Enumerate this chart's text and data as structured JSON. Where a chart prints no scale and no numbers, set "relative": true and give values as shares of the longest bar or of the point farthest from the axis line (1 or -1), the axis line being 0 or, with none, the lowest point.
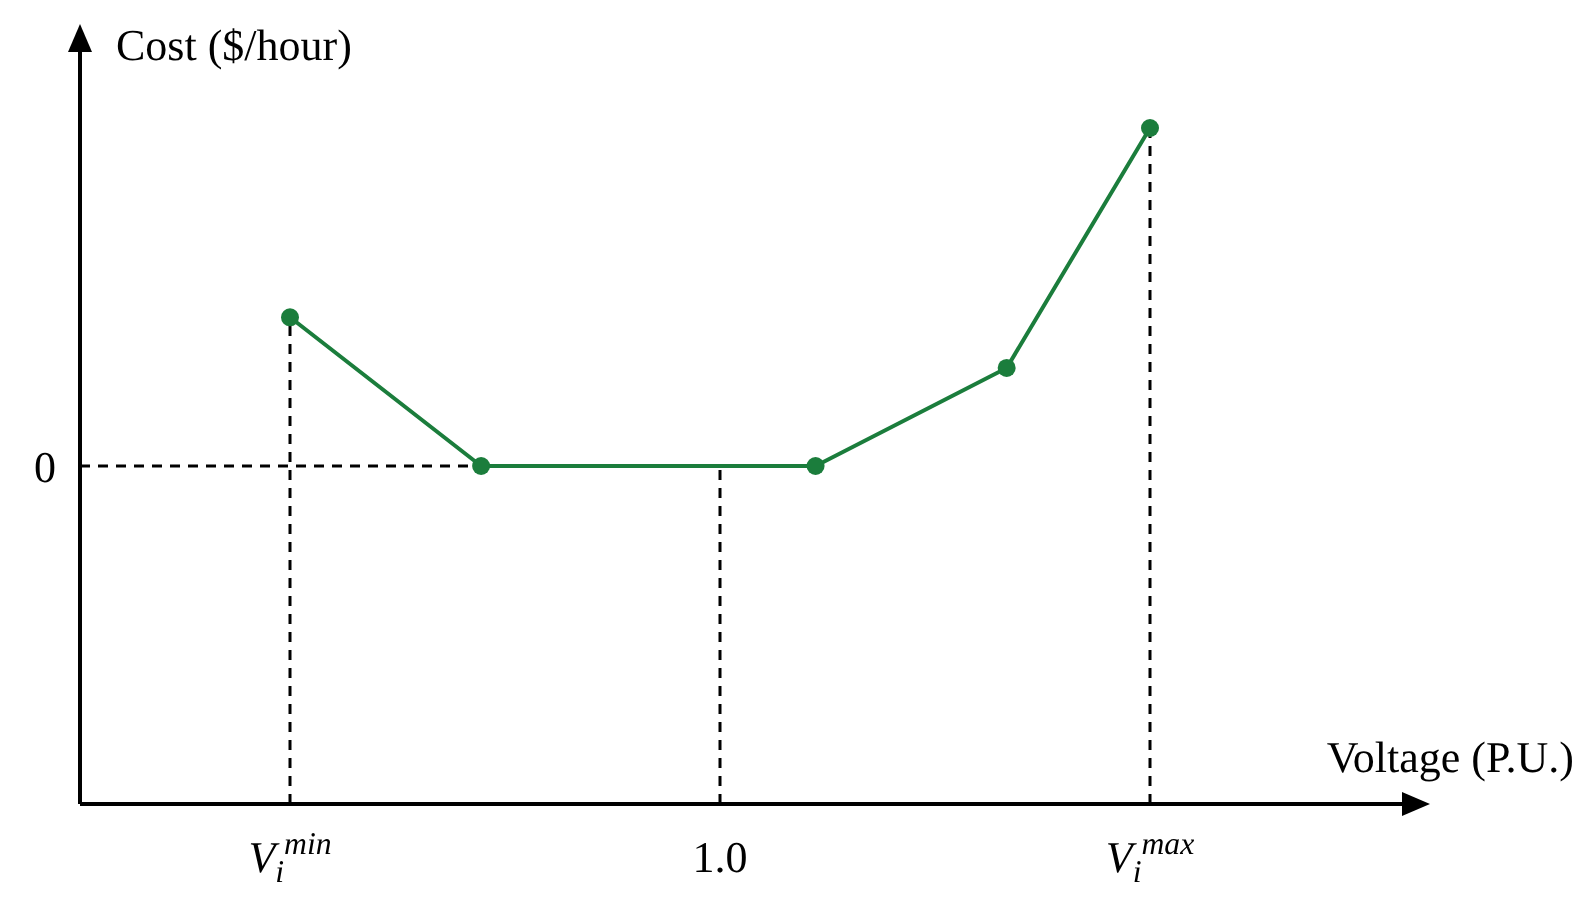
{
  "chart_data": {
    "type": "line",
    "xlabel": "Voltage (P.U.)",
    "ylabel": "Cost ($/hour)",
    "relative": true,
    "categories": [
      "V$_{i}$$^{min}$",
      null,
      null,
      null,
      null,
      null,
      null,
      null,
      null,
      "1.0",
      null,
      null,
      null,
      null,
      null,
      null,
      null,
      null,
      "V$_{i}$$^{max}$"
    ],
    "series": [
      {
        "color": "#1b7d3c",
        "values": [
          0.72,
          null,
          null,
          null,
          0.5,
          null,
          null,
          null,
          null,
          null,
          null,
          0.5,
          null,
          null,
          null,
          0.645,
          null,
          null,
          1
        ]
      }
    ],
    "marker": "circle",
    "line_style": "solid",
    "grid": false,
    "ref_lines": [
      {
        "axis": "y",
        "value": 0.5,
        "label": "0",
        "line_style": "dashed"
      },
      {
        "axis": "x",
        "value": "V$_{i}$$^{min}$",
        "line_style": "dashed"
      },
      {
        "axis": "x",
        "value": "1.0",
        "line_style": "dashed"
      },
      {
        "axis": "x",
        "value": "V$_{i}$$^{max}$",
        "line_style": "dashed"
      }
    ]
  }
}
